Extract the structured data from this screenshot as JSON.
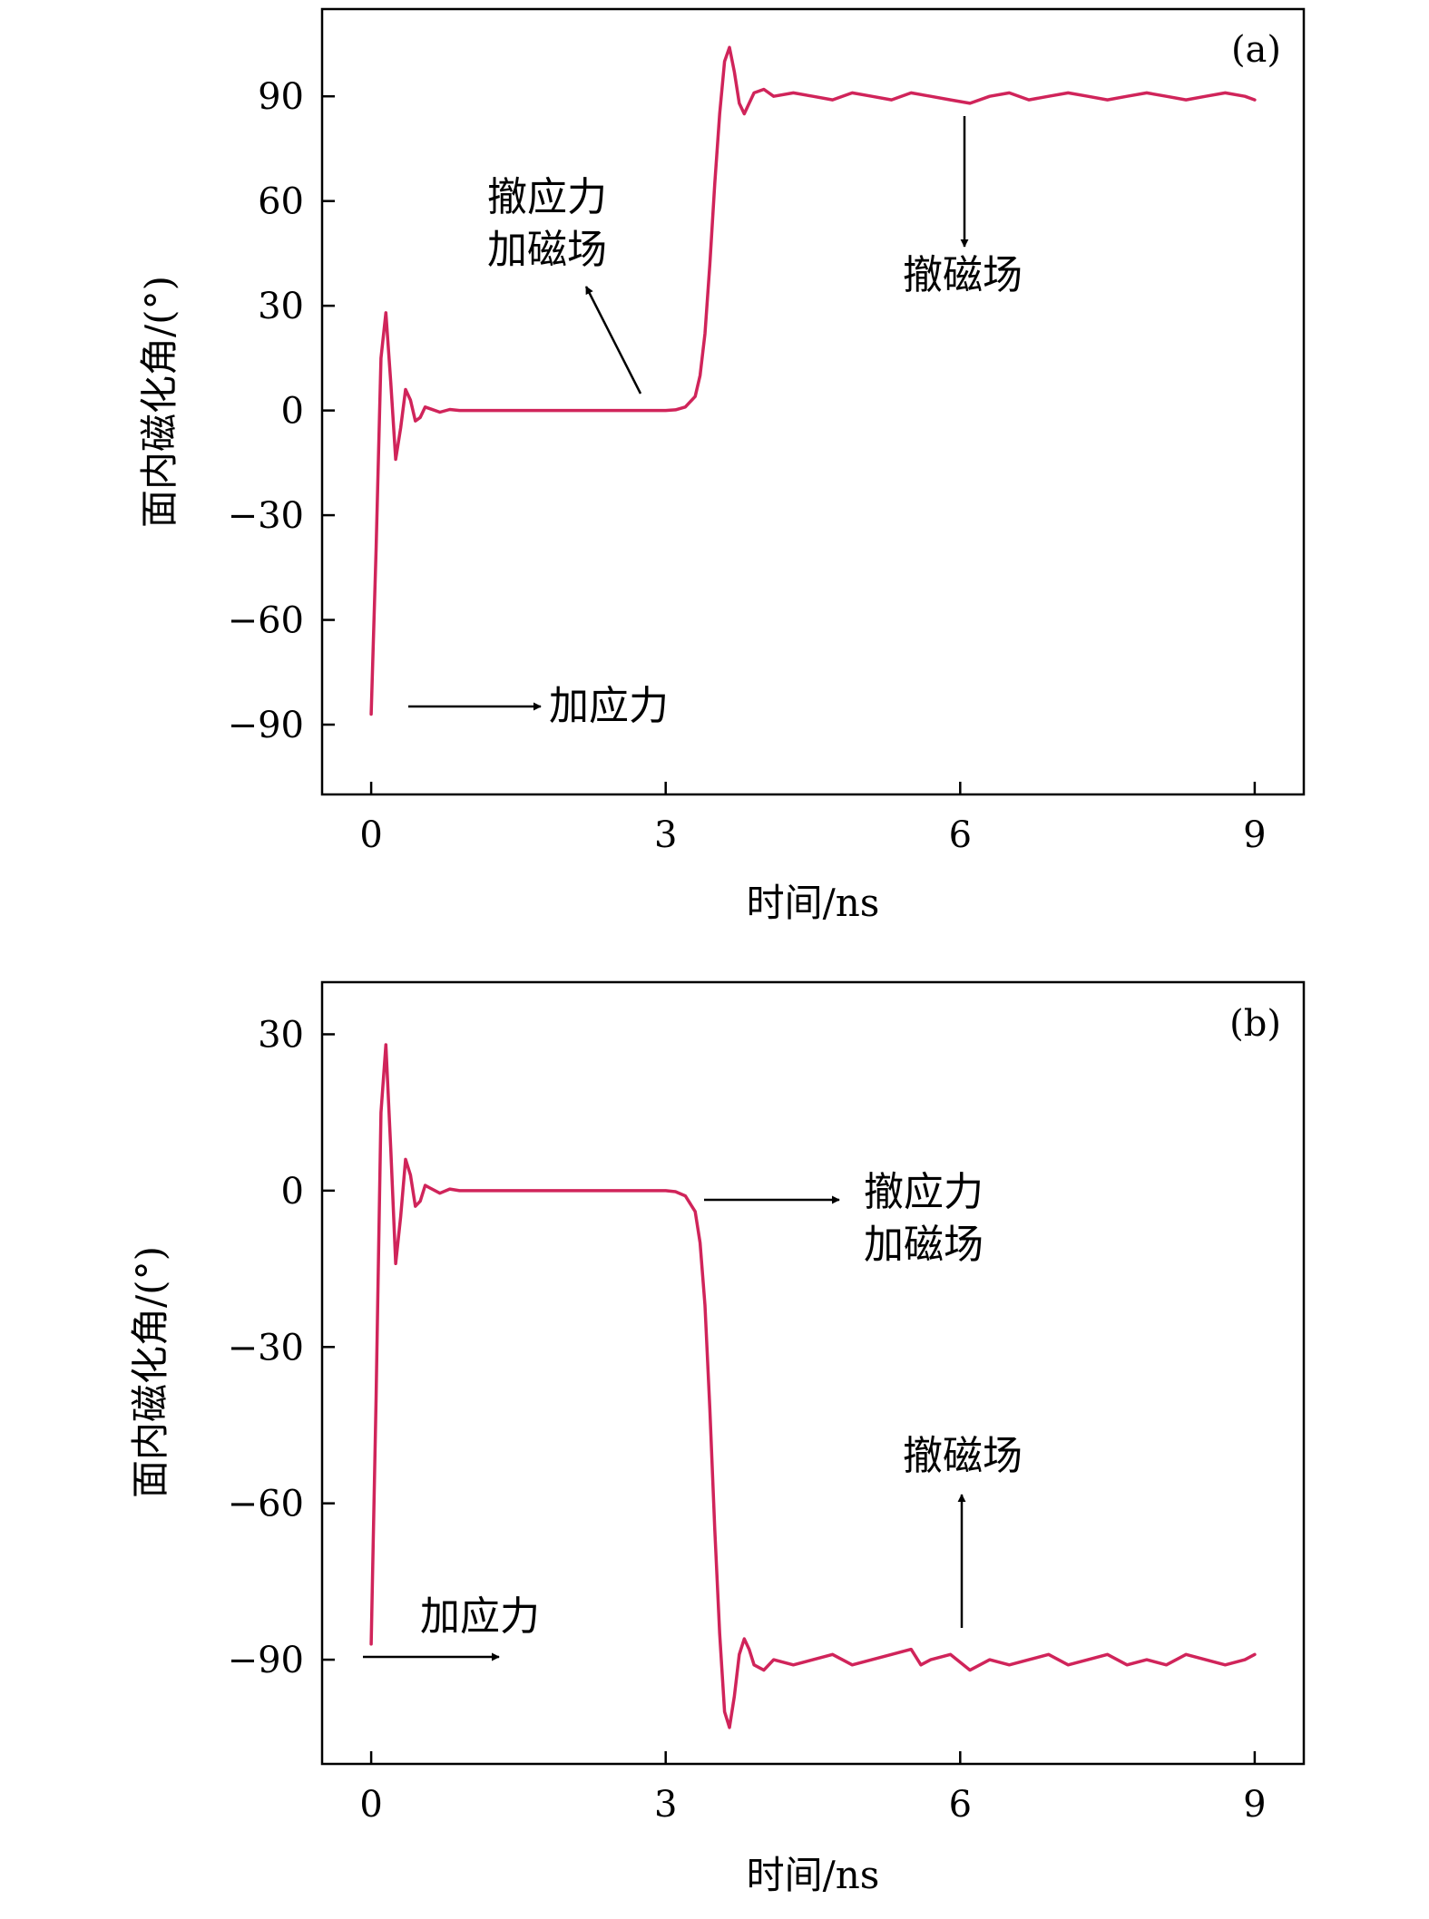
{
  "chart_data": [
    {
      "type": "line",
      "panel_label": "(a)",
      "xlabel": "时间/ns",
      "ylabel": "面内磁化角/(°)",
      "xlim": [
        -0.5,
        9.5
      ],
      "ylim": [
        -110,
        115
      ],
      "xticks": [
        0,
        3,
        6,
        9
      ],
      "yticks": [
        90,
        60,
        30,
        0,
        -30,
        -60,
        -90
      ],
      "xtick_labels": [
        "0",
        "3",
        "6",
        "9"
      ],
      "ytick_labels": [
        "90",
        "60",
        "30",
        "0",
        "−30",
        "−60",
        "−90"
      ],
      "grid": false,
      "line_color": "#d0245a",
      "series": [
        {
          "x": [
            0.0,
            0.05,
            0.1,
            0.15,
            0.2,
            0.25,
            0.3,
            0.35,
            0.4,
            0.45,
            0.5,
            0.55,
            0.6,
            0.7,
            0.8,
            0.9,
            1.0,
            1.5,
            2.0,
            2.5,
            3.0,
            3.1,
            3.2,
            3.3,
            3.35,
            3.4,
            3.45,
            3.5,
            3.55,
            3.6,
            3.65,
            3.7,
            3.75,
            3.8,
            3.85,
            3.9,
            4.0,
            4.1,
            4.3,
            4.5,
            4.7,
            4.9,
            5.1,
            5.3,
            5.5,
            5.7,
            5.9,
            6.1,
            6.3,
            6.5,
            6.7,
            6.9,
            7.1,
            7.3,
            7.5,
            7.7,
            7.9,
            8.1,
            8.3,
            8.5,
            8.7,
            8.9,
            9.0
          ],
          "y": [
            -87,
            -40,
            15,
            28,
            8,
            -14,
            -5,
            6,
            3,
            -3,
            -2,
            1,
            0.5,
            -0.5,
            0.3,
            0,
            0,
            0,
            0,
            0,
            0,
            0.2,
            1,
            4,
            10,
            22,
            42,
            65,
            85,
            100,
            104,
            97,
            88,
            85,
            88,
            91,
            92,
            90,
            91,
            90,
            89,
            91,
            90,
            89,
            91,
            90,
            89,
            88,
            90,
            91,
            89,
            90,
            91,
            90,
            89,
            90,
            91,
            90,
            89,
            90,
            91,
            90,
            89
          ]
        }
      ],
      "annotations": [
        {
          "text": "加应力"
        },
        {
          "text_lines": [
            "撤应力",
            "加磁场"
          ]
        },
        {
          "text": "撤磁场"
        }
      ]
    },
    {
      "type": "line",
      "panel_label": "(b)",
      "xlabel": "时间/ns",
      "ylabel": "面内磁化角/(°)",
      "xlim": [
        -0.5,
        9.5
      ],
      "ylim": [
        -110,
        40
      ],
      "xticks": [
        0,
        3,
        6,
        9
      ],
      "yticks": [
        30,
        0,
        -30,
        -60,
        -90
      ],
      "xtick_labels": [
        "0",
        "3",
        "6",
        "9"
      ],
      "ytick_labels": [
        "30",
        "0",
        "−30",
        "−60",
        "−90"
      ],
      "grid": false,
      "line_color": "#d0245a",
      "series": [
        {
          "x": [
            0.0,
            0.05,
            0.1,
            0.15,
            0.2,
            0.25,
            0.3,
            0.35,
            0.4,
            0.45,
            0.5,
            0.55,
            0.6,
            0.7,
            0.8,
            0.9,
            1.0,
            1.5,
            2.0,
            2.5,
            3.0,
            3.1,
            3.2,
            3.3,
            3.35,
            3.4,
            3.45,
            3.5,
            3.55,
            3.6,
            3.65,
            3.7,
            3.75,
            3.8,
            3.85,
            3.9,
            4.0,
            4.1,
            4.3,
            4.5,
            4.7,
            4.9,
            5.1,
            5.3,
            5.5,
            5.6,
            5.7,
            5.9,
            6.1,
            6.3,
            6.5,
            6.7,
            6.9,
            7.1,
            7.3,
            7.5,
            7.7,
            7.9,
            8.1,
            8.3,
            8.5,
            8.7,
            8.9,
            9.0
          ],
          "y": [
            -87,
            -40,
            15,
            28,
            8,
            -14,
            -5,
            6,
            3,
            -3,
            -2,
            1,
            0.5,
            -0.5,
            0.3,
            0,
            0,
            0,
            0,
            0,
            0,
            -0.2,
            -1,
            -4,
            -10,
            -22,
            -42,
            -65,
            -85,
            -100,
            -103,
            -97,
            -89,
            -86,
            -88,
            -91,
            -92,
            -90,
            -91,
            -90,
            -89,
            -91,
            -90,
            -89,
            -88,
            -91,
            -90,
            -89,
            -92,
            -90,
            -91,
            -90,
            -89,
            -91,
            -90,
            -89,
            -91,
            -90,
            -91,
            -89,
            -90,
            -91,
            -90,
            -89
          ]
        }
      ],
      "annotations": [
        {
          "text": "加应力"
        },
        {
          "text_lines": [
            "撤应力",
            "加磁场"
          ]
        },
        {
          "text": "撤磁场"
        }
      ]
    }
  ]
}
